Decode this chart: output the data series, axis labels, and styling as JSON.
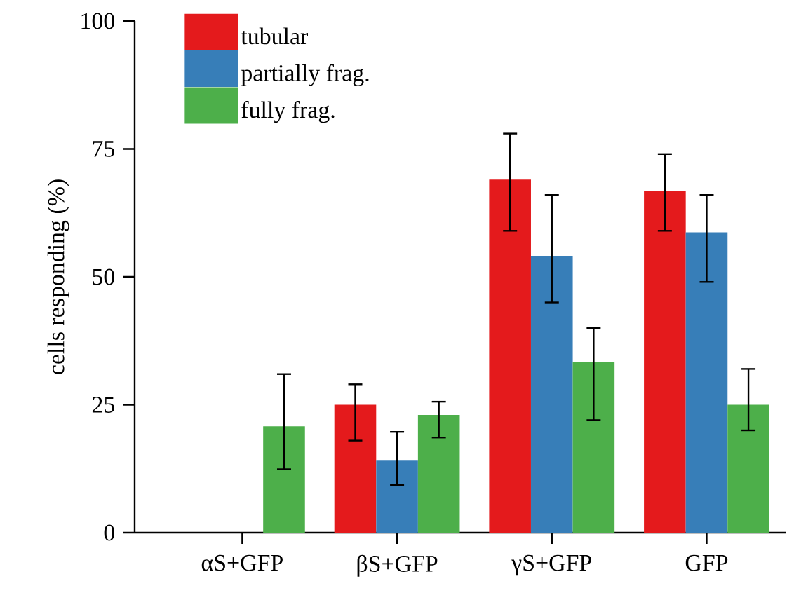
{
  "chart_data": {
    "type": "bar",
    "ylabel": "cells responding (%)",
    "categories": [
      "αS+GFP",
      "βS+GFP",
      "γS+GFP",
      "GFP"
    ],
    "series": [
      {
        "name": "tubular",
        "color": "#e41a1c",
        "values": [
          0,
          25,
          69,
          66.7
        ],
        "errors": [
          null,
          [
            18,
            29
          ],
          [
            59,
            78
          ],
          [
            59,
            74
          ]
        ]
      },
      {
        "name": "partially frag.",
        "color": "#377eb8",
        "values": [
          0,
          14.2,
          54.1,
          58.7
        ],
        "errors": [
          null,
          [
            9.3,
            19.7
          ],
          [
            45,
            66
          ],
          [
            49,
            66
          ]
        ]
      },
      {
        "name": "fully frag.",
        "color": "#4daf4a",
        "values": [
          20.8,
          23,
          33.3,
          25
        ],
        "errors": [
          [
            12.4,
            31
          ],
          [
            18.6,
            25.6
          ],
          [
            22,
            40
          ],
          [
            20,
            32
          ]
        ]
      }
    ],
    "ylim": [
      0,
      100
    ],
    "yticks": [
      0,
      25,
      50,
      75,
      100
    ],
    "legend": "top left",
    "grid": false
  }
}
